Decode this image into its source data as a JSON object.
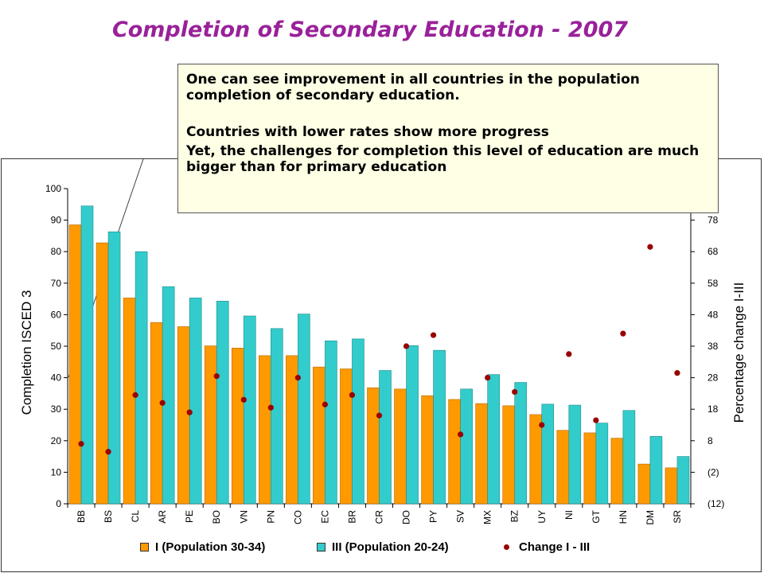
{
  "title": "Completion of Secondary Education - 2007",
  "callout": {
    "line1": "One can see improvement in all countries in the population completion of secondary education.",
    "line2": "Countries with lower rates show more progress",
    "line3": "Yet, the challenges for completion this level of education are much bigger than for primary education"
  },
  "chart_data": {
    "type": "bar",
    "categories": [
      "BB",
      "BS",
      "CL",
      "AR",
      "PE",
      "BO",
      "VN",
      "PN",
      "CO",
      "EC",
      "BR",
      "CR",
      "DO",
      "PY",
      "SV",
      "MX",
      "BZ",
      "UY",
      "NI",
      "GT",
      "HN",
      "DM",
      "SR"
    ],
    "series": [
      {
        "name": "I (Population 30-34)",
        "type": "bar",
        "axis": "left",
        "color": "#ff9900",
        "values": [
          88.5,
          82.8,
          65.3,
          57.5,
          56.2,
          50.1,
          49.4,
          47.0,
          47.0,
          43.4,
          42.8,
          36.8,
          36.4,
          34.3,
          33.1,
          31.8,
          31.1,
          28.3,
          23.3,
          22.5,
          20.8,
          12.6,
          11.4
        ]
      },
      {
        "name": "III (Population 20-24)",
        "type": "bar",
        "axis": "left",
        "color": "#33cccc",
        "values": [
          94.5,
          86.3,
          80.0,
          68.9,
          65.3,
          64.3,
          59.6,
          55.6,
          60.2,
          51.7,
          52.3,
          42.3,
          50.2,
          48.7,
          36.4,
          41.0,
          38.5,
          31.6,
          31.3,
          25.6,
          29.6,
          21.4,
          15.0
        ]
      },
      {
        "name": "Change I - III",
        "type": "scatter",
        "axis": "right",
        "color": "#990000",
        "values": [
          7.0,
          4.5,
          22.5,
          20.0,
          17.0,
          28.5,
          21.0,
          18.5,
          28.0,
          19.5,
          22.5,
          16.0,
          38.0,
          41.5,
          10.0,
          28.0,
          23.5,
          13.0,
          35.5,
          14.5,
          42.0,
          69.5,
          29.5
        ]
      }
    ],
    "ylabel": "Completion ISCED 3",
    "y2label": "Percentage change I-III",
    "ylim": [
      0,
      100
    ],
    "y_ticks": [
      0,
      10,
      20,
      30,
      40,
      50,
      60,
      70,
      80,
      90,
      100
    ],
    "y2lim": [
      -12,
      88
    ],
    "y2_ticks": [
      -12,
      -2,
      8,
      18,
      28,
      38,
      48,
      58,
      68,
      78
    ],
    "y2_tick_labels": [
      "(12)",
      "(2)",
      "8",
      "18",
      "28",
      "38",
      "48",
      "58",
      "68",
      "78"
    ],
    "legend_position": "bottom",
    "grid": false
  }
}
